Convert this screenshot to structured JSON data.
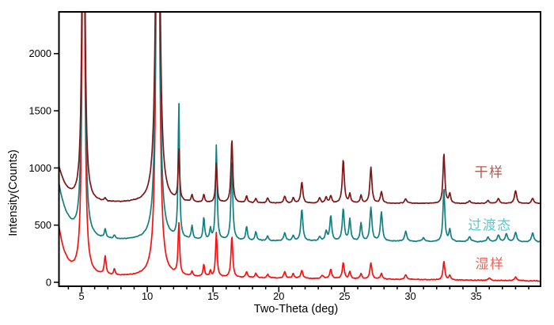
{
  "chart_data": {
    "type": "line",
    "title": "",
    "xlabel": "Two-Theta (deg)",
    "ylabel": "Intensity(Counts)",
    "x_range": [
      3.3,
      39.9
    ],
    "y_range": [
      -35,
      2365
    ],
    "x_major_ticks": [
      5,
      10,
      15,
      20,
      25,
      30,
      35
    ],
    "x_minor_step": 1,
    "y_major_ticks": [
      0,
      500,
      1000,
      1500,
      2000
    ],
    "grid": false,
    "legend_position": "right-inside",
    "axis_color": "#000000",
    "background_color": "#ffffff",
    "series": [
      {
        "name": "湿样",
        "color": "#fb1010",
        "label_color": "#e8685c",
        "baseline_start": 480,
        "baseline_flat": 55,
        "baseline_end": 12,
        "decay_tau": 0.55,
        "noise": 5.5,
        "peaks": [
          [
            5.15,
            4500,
            0.1
          ],
          [
            6.8,
            160,
            0.08
          ],
          [
            7.5,
            50,
            0.08
          ],
          [
            10.8,
            5500,
            0.12
          ],
          [
            12.4,
            450,
            0.07
          ],
          [
            13.4,
            40,
            0.07
          ],
          [
            14.3,
            110,
            0.07
          ],
          [
            14.8,
            50,
            0.07
          ],
          [
            15.25,
            390,
            0.07
          ],
          [
            16.43,
            360,
            0.08
          ],
          [
            17.55,
            50,
            0.08
          ],
          [
            18.25,
            40,
            0.08
          ],
          [
            19.15,
            30,
            0.08
          ],
          [
            20.45,
            55,
            0.09
          ],
          [
            21.1,
            40,
            0.08
          ],
          [
            21.75,
            70,
            0.09
          ],
          [
            23.3,
            30,
            0.09
          ],
          [
            23.95,
            80,
            0.09
          ],
          [
            24.9,
            140,
            0.09
          ],
          [
            25.4,
            60,
            0.08
          ],
          [
            26.25,
            45,
            0.08
          ],
          [
            27.0,
            140,
            0.09
          ],
          [
            27.8,
            50,
            0.09
          ],
          [
            29.65,
            40,
            0.1
          ],
          [
            32.55,
            165,
            0.08
          ],
          [
            33.0,
            40,
            0.08
          ],
          [
            36.0,
            20,
            0.1
          ],
          [
            38.0,
            30,
            0.1
          ]
        ]
      },
      {
        "name": "过渡态",
        "color": "#128080",
        "label_color": "#5cc8c8",
        "baseline_start": 850,
        "baseline_flat": 368,
        "baseline_end": 352,
        "decay_tau": 0.75,
        "noise": 5.5,
        "peaks": [
          [
            5.15,
            4500,
            0.1
          ],
          [
            6.8,
            75,
            0.08
          ],
          [
            7.5,
            30,
            0.08
          ],
          [
            10.8,
            5500,
            0.12
          ],
          [
            12.4,
            1175,
            0.065
          ],
          [
            13.4,
            115,
            0.07
          ],
          [
            14.3,
            195,
            0.07
          ],
          [
            14.8,
            90,
            0.07
          ],
          [
            15.25,
            830,
            0.07
          ],
          [
            16.43,
            700,
            0.08
          ],
          [
            17.55,
            120,
            0.08
          ],
          [
            18.25,
            75,
            0.08
          ],
          [
            19.15,
            40,
            0.08
          ],
          [
            20.45,
            70,
            0.09
          ],
          [
            21.1,
            45,
            0.08
          ],
          [
            21.75,
            275,
            0.09
          ],
          [
            23.1,
            35,
            0.09
          ],
          [
            23.6,
            80,
            0.09
          ],
          [
            23.95,
            215,
            0.09
          ],
          [
            24.9,
            280,
            0.09
          ],
          [
            25.4,
            195,
            0.08
          ],
          [
            26.25,
            155,
            0.08
          ],
          [
            27.0,
            295,
            0.09
          ],
          [
            27.8,
            255,
            0.09
          ],
          [
            29.65,
            90,
            0.1
          ],
          [
            31.0,
            30,
            0.1
          ],
          [
            32.55,
            470,
            0.08
          ],
          [
            33.0,
            105,
            0.08
          ],
          [
            34.5,
            45,
            0.1
          ],
          [
            35.9,
            40,
            0.1
          ],
          [
            36.7,
            60,
            0.1
          ],
          [
            37.3,
            70,
            0.1
          ],
          [
            38.0,
            85,
            0.1
          ],
          [
            39.3,
            80,
            0.1
          ]
        ]
      },
      {
        "name": "干样",
        "color": "#7e1517",
        "label_color": "#b25b4e",
        "baseline_start": 1005,
        "baseline_flat": 692,
        "baseline_end": 688,
        "decay_tau": 0.65,
        "noise": 5.0,
        "peaks": [
          [
            5.15,
            4500,
            0.1
          ],
          [
            6.8,
            25,
            0.08
          ],
          [
            10.8,
            5500,
            0.13
          ],
          [
            12.4,
            440,
            0.065
          ],
          [
            13.4,
            60,
            0.07
          ],
          [
            14.3,
            70,
            0.07
          ],
          [
            15.25,
            345,
            0.07
          ],
          [
            16.43,
            560,
            0.08
          ],
          [
            17.55,
            60,
            0.08
          ],
          [
            18.25,
            40,
            0.08
          ],
          [
            19.15,
            45,
            0.09
          ],
          [
            20.45,
            62,
            0.09
          ],
          [
            21.1,
            45,
            0.08
          ],
          [
            21.75,
            185,
            0.09
          ],
          [
            23.1,
            45,
            0.09
          ],
          [
            23.6,
            50,
            0.09
          ],
          [
            23.95,
            60,
            0.09
          ],
          [
            24.9,
            380,
            0.09
          ],
          [
            25.4,
            78,
            0.08
          ],
          [
            26.25,
            65,
            0.08
          ],
          [
            27.0,
            315,
            0.09
          ],
          [
            27.8,
            100,
            0.09
          ],
          [
            29.65,
            40,
            0.1
          ],
          [
            32.55,
            442,
            0.08
          ],
          [
            33.0,
            82,
            0.08
          ],
          [
            34.5,
            25,
            0.1
          ],
          [
            35.9,
            28,
            0.1
          ],
          [
            36.7,
            45,
            0.1
          ],
          [
            38.0,
            115,
            0.1
          ],
          [
            39.3,
            45,
            0.1
          ]
        ]
      }
    ]
  }
}
